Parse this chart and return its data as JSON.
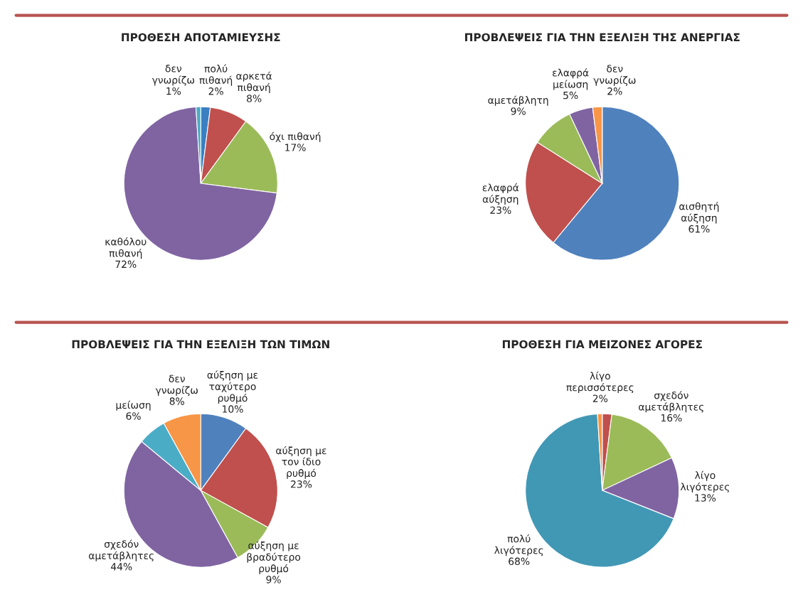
{
  "chart_data": [
    {
      "type": "pie",
      "title": "ΠΡΟΘΕΣΗ ΑΠΟΤΑΜΙΕΥΣΗΣ",
      "categories": [
        "πολύ πιθανή",
        "αρκετά πιθανή",
        "όχι πιθανή",
        "καθόλου πιθανή",
        "δεν γνωρίζω"
      ],
      "values": [
        2,
        8,
        17,
        72,
        1
      ],
      "colors": [
        "#3a7fc2",
        "#c0504d",
        "#9bbb59",
        "#8064a2",
        "#4bacc6"
      ],
      "value_labels": [
        "2%",
        "8%",
        "17%",
        "72%",
        "1%"
      ]
    },
    {
      "type": "pie",
      "title": "ΠΡΟΒΛΕΨΕΙΣ ΓΙΑ ΤΗΝ ΕΞΕΛΙΞΗ ΤΗΣ ΑΝΕΡΓΙΑΣ",
      "categories": [
        "αισθητή αύξηση",
        "ελαφρά αύξηση",
        "αμετάβλητη",
        "ελαφρά μείωση",
        "δεν γνωρίζω"
      ],
      "values": [
        61,
        23,
        9,
        5,
        2
      ],
      "colors": [
        "#4f81bd",
        "#c0504d",
        "#9bbb59",
        "#8064a2",
        "#f79646"
      ],
      "value_labels": [
        "61%",
        "23%",
        "9%",
        "5%",
        "2%"
      ]
    },
    {
      "type": "pie",
      "title": "ΠΡΟΒΛΕΨΕΙΣ ΓΙΑ ΤΗΝ ΕΞΕΛΙΞΗ ΤΩΝ ΤΙΜΩΝ",
      "categories": [
        "αύξηση με ταχύτερο ρυθμό",
        "αύξηση με τον ίδιο ρυθμό",
        "αύξηση με βραδύτερο ρυθμό",
        "σχεδόν αμετάβλητες",
        "μείωση",
        "δεν γνωρίζω"
      ],
      "values": [
        10,
        23,
        9,
        44,
        6,
        8
      ],
      "colors": [
        "#4f81bd",
        "#c0504d",
        "#9bbb59",
        "#8064a2",
        "#4bacc6",
        "#f79646"
      ],
      "value_labels": [
        "10%",
        "23%",
        "9%",
        "44%",
        "6%",
        "8%"
      ]
    },
    {
      "type": "pie",
      "title": "ΠΡΟΘΕΣΗ ΓΙΑ ΜΕΙΖΟΝΕΣ ΑΓΟΡΕΣ",
      "categories": [
        "λίγο περισσότερες",
        "σχεδόν αμετάβλητες",
        "λίγο λιγότερες",
        "πολύ λιγότερες",
        null
      ],
      "values": [
        2,
        16,
        13,
        68,
        1
      ],
      "colors": [
        "#c0504d",
        "#9bbb59",
        "#8064a2",
        "#4198b5",
        "#f79646"
      ],
      "value_labels": [
        "2%",
        "16%",
        "13%",
        "68%",
        null
      ]
    }
  ]
}
